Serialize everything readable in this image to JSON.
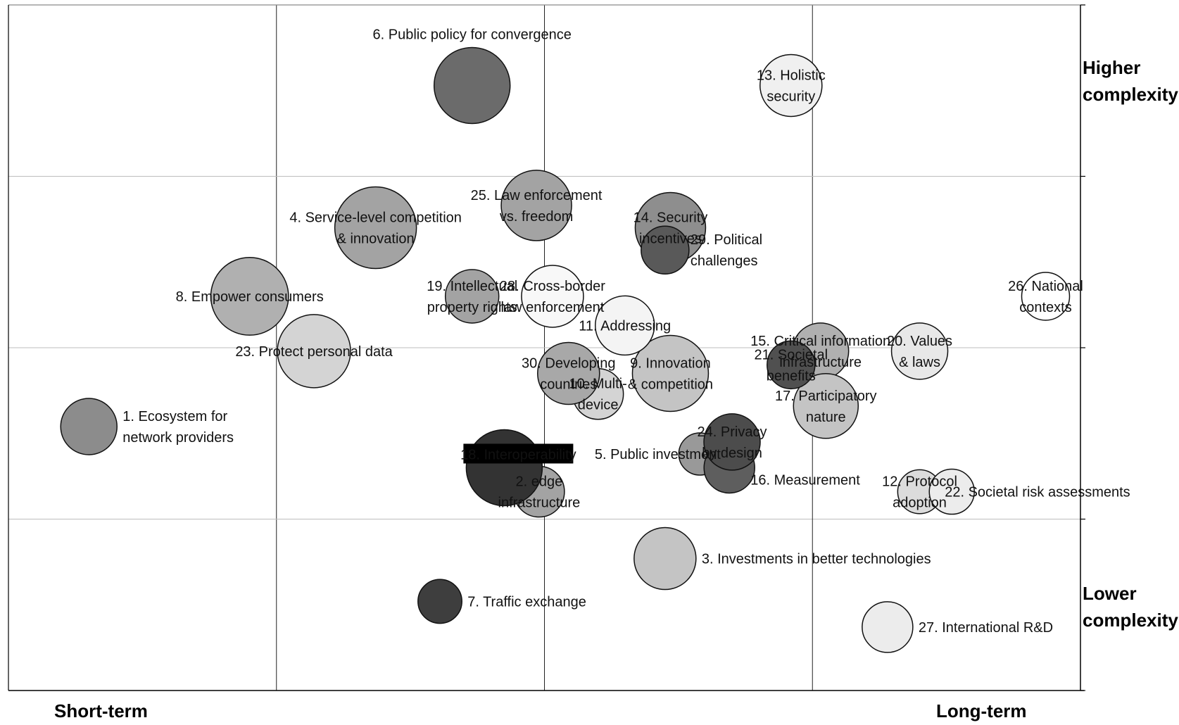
{
  "chart_data": {
    "type": "bubble",
    "axis_text": {
      "x_low": "Short-term",
      "x_high": "Long-term",
      "y_high": "Higher complexity",
      "y_low": "Lower complexity"
    },
    "xlim": [
      0,
      4
    ],
    "ylim": [
      0,
      4
    ],
    "grid": true,
    "points": [
      {
        "id": "1",
        "label": "1. Ecosystem for network providers",
        "lines": [
          "1. Ecosystem for",
          "network providers"
        ],
        "x": 0.3,
        "y": 1.54,
        "size": 1.0,
        "shade": "#8c8c8c"
      },
      {
        "id": "2",
        "label": "2. edge infrastructure",
        "lines": [
          "2. edge",
          "infrastructure"
        ],
        "x": 1.98,
        "y": 1.16,
        "size": 0.9,
        "shade": "#a3a3a3"
      },
      {
        "id": "3",
        "label": "3. Investments in better technologies",
        "lines": [
          "3. Investments in better technologies"
        ],
        "x": 2.45,
        "y": 0.77,
        "size": 1.1,
        "shade": "#c4c4c4"
      },
      {
        "id": "4",
        "label": "4. Service-level competition & innovation",
        "lines": [
          "4. Service-level competition",
          "& innovation"
        ],
        "x": 1.37,
        "y": 2.7,
        "size": 1.45,
        "shade": "#a3a3a3"
      },
      {
        "id": "5",
        "label": "5. Public investment",
        "lines": [
          "5. Public investment"
        ],
        "x": 2.58,
        "y": 1.38,
        "size": 0.75,
        "shade": "#999999"
      },
      {
        "id": "6",
        "label": "6. Public policy for convergence",
        "lines": [
          "6. Public policy for convergence"
        ],
        "x": 1.73,
        "y": 3.53,
        "size": 1.35,
        "shade": "#6b6b6b"
      },
      {
        "id": "7",
        "label": "7. Traffic exchange",
        "lines": [
          "7. Traffic exchange"
        ],
        "x": 1.61,
        "y": 0.52,
        "size": 0.78,
        "shade": "#3e3e3e"
      },
      {
        "id": "8",
        "label": "8. Empower consumers",
        "lines": [
          "8. Empower consumers"
        ],
        "x": 0.9,
        "y": 2.3,
        "size": 1.38,
        "shade": "#b0b0b0"
      },
      {
        "id": "9",
        "label": "9. Innovation & competition",
        "lines": [
          "9. Innovation",
          "& competition"
        ],
        "x": 2.47,
        "y": 1.85,
        "size": 1.35,
        "shade": "#c4c4c4"
      },
      {
        "id": "10",
        "label": "10. Multi-device",
        "lines": [
          "10. Multi-",
          "device"
        ],
        "x": 2.2,
        "y": 1.73,
        "size": 0.9,
        "shade": "#d4d4d4"
      },
      {
        "id": "11",
        "label": "11. Addressing",
        "lines": [
          "11. Addressing"
        ],
        "x": 2.3,
        "y": 2.13,
        "size": 1.05,
        "shade": "#f4f4f4"
      },
      {
        "id": "12",
        "label": "12. Protocol adoption",
        "lines": [
          "12. Protocol",
          "adoption"
        ],
        "x": 3.4,
        "y": 1.16,
        "size": 0.78,
        "shade": "#dcdcdc"
      },
      {
        "id": "13",
        "label": "13. Holistic security",
        "lines": [
          "13. Holistic",
          "security"
        ],
        "x": 2.92,
        "y": 3.53,
        "size": 1.1,
        "shade": "#f0f0f0"
      },
      {
        "id": "14",
        "label": "14. Security incentives",
        "lines": [
          "14. Security",
          "incentives"
        ],
        "x": 2.47,
        "y": 2.7,
        "size": 1.25,
        "shade": "#8e8e8e"
      },
      {
        "id": "15",
        "label": "15. Critical information infrastructure",
        "lines": [
          "15. Critical information",
          "infrastructure"
        ],
        "x": 3.03,
        "y": 1.98,
        "size": 1.0,
        "shade": "#b0b0b0"
      },
      {
        "id": "16",
        "label": "16. Measurement",
        "lines": [
          "16. Measurement"
        ],
        "x": 2.69,
        "y": 1.3,
        "size": 0.9,
        "shade": "#5e5e5e"
      },
      {
        "id": "17",
        "label": "17. Participatory nature",
        "lines": [
          "17. Participatory",
          "nature"
        ],
        "x": 3.05,
        "y": 1.66,
        "size": 1.15,
        "shade": "#c4c4c4"
      },
      {
        "id": "18",
        "label": "18. Interoperability",
        "lines": [
          "18. Interoperability"
        ],
        "x": 1.85,
        "y": 1.3,
        "size": 1.35,
        "shade": "#333333"
      },
      {
        "id": "19",
        "label": "19. Intellectual property rights",
        "lines": [
          "19. Intellectual",
          "property rights"
        ],
        "x": 1.73,
        "y": 2.3,
        "size": 0.95,
        "shade": "#a3a3a3"
      },
      {
        "id": "20",
        "label": "20. Values & laws",
        "lines": [
          "20. Values",
          "& laws"
        ],
        "x": 3.4,
        "y": 1.98,
        "size": 1.0,
        "shade": "#e8e8e8"
      },
      {
        "id": "21",
        "label": "21. Societal benefits",
        "lines": [
          "21. Societal",
          "benefits"
        ],
        "x": 2.92,
        "y": 1.9,
        "size": 0.85,
        "shade": "#505050"
      },
      {
        "id": "22",
        "label": "22. Societal risk assessments",
        "lines": [
          "22. Societal risk assessments"
        ],
        "x": 3.52,
        "y": 1.16,
        "size": 0.8,
        "shade": "#ececec"
      },
      {
        "id": "23",
        "label": "23. Protect personal data",
        "lines": [
          "23. Protect personal data"
        ],
        "x": 1.14,
        "y": 1.98,
        "size": 1.3,
        "shade": "#d4d4d4"
      },
      {
        "id": "24",
        "label": "24. Privacy by design",
        "lines": [
          "24. Privacy",
          "by design"
        ],
        "x": 2.7,
        "y": 1.45,
        "size": 1.0,
        "shade": "#4c4c4c"
      },
      {
        "id": "25",
        "label": "25. Law enforcement vs. freedom",
        "lines": [
          "25. Law enforcement",
          "vs. freedom"
        ],
        "x": 1.97,
        "y": 2.83,
        "size": 1.25,
        "shade": "#a3a3a3"
      },
      {
        "id": "26",
        "label": "26. National contexts",
        "lines": [
          "26. National",
          "contexts"
        ],
        "x": 3.87,
        "y": 2.3,
        "size": 0.85,
        "shade": "#ffffff"
      },
      {
        "id": "27",
        "label": "27. International R&D",
        "lines": [
          "27. International R&D"
        ],
        "x": 3.28,
        "y": 0.37,
        "size": 0.9,
        "shade": "#ececec"
      },
      {
        "id": "28",
        "label": "28. Cross-border law enforcement",
        "lines": [
          "28. Cross-border",
          "law enforcement"
        ],
        "x": 2.03,
        "y": 2.3,
        "size": 1.1,
        "shade": "#f8f8f8"
      },
      {
        "id": "29",
        "label": "29. Political challenges",
        "lines": [
          "29. Political",
          "challenges"
        ],
        "x": 2.45,
        "y": 2.57,
        "size": 0.85,
        "shade": "#595959"
      },
      {
        "id": "30",
        "label": "30. Developing countries",
        "lines": [
          "30. Developing",
          "countries"
        ],
        "x": 2.09,
        "y": 1.85,
        "size": 1.1,
        "shade": "#a8a8a8"
      }
    ]
  }
}
